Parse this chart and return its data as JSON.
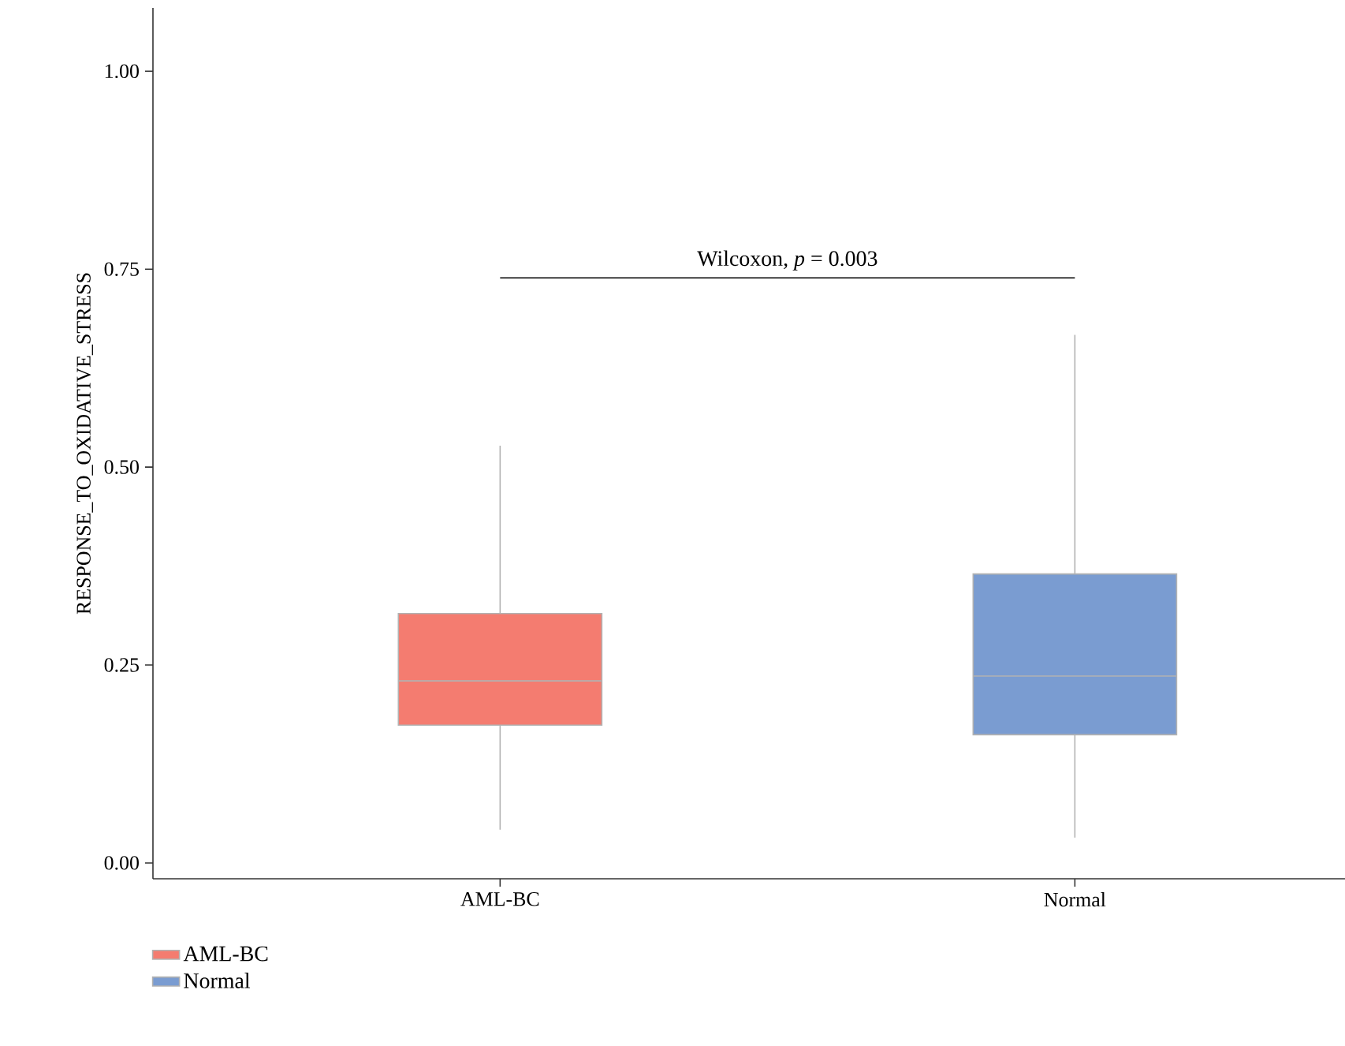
{
  "chart_data": {
    "type": "box",
    "ylabel": "RESPONSE_TO_OXIDATIVE_STRESS",
    "categories": [
      "AML-BC",
      "Normal"
    ],
    "series": [
      {
        "name": "AML-BC",
        "color": "#f47c70",
        "boxes": [
          {
            "low": 0.042,
            "q1": 0.174,
            "median": 0.23,
            "q3": 0.315,
            "high": 0.527
          },
          null
        ]
      },
      {
        "name": "Normal",
        "color": "#7a9cd1",
        "boxes": [
          null,
          {
            "low": 0.032,
            "q1": 0.162,
            "median": 0.236,
            "q3": 0.365,
            "high": 0.667
          }
        ]
      }
    ],
    "ylim": [
      -0.02,
      1.08
    ],
    "yticks": [
      {
        "value": 0,
        "label": "0.00"
      },
      {
        "value": 0.25,
        "label": "0.25"
      },
      {
        "value": 0.5,
        "label": "0.50"
      },
      {
        "value": 0.75,
        "label": "0.75"
      },
      {
        "value": 1,
        "label": "1.00"
      }
    ],
    "annotations": [
      "Wilcoxon, *p* = 0.003"
    ],
    "legend": "bottom left",
    "grid": false
  }
}
